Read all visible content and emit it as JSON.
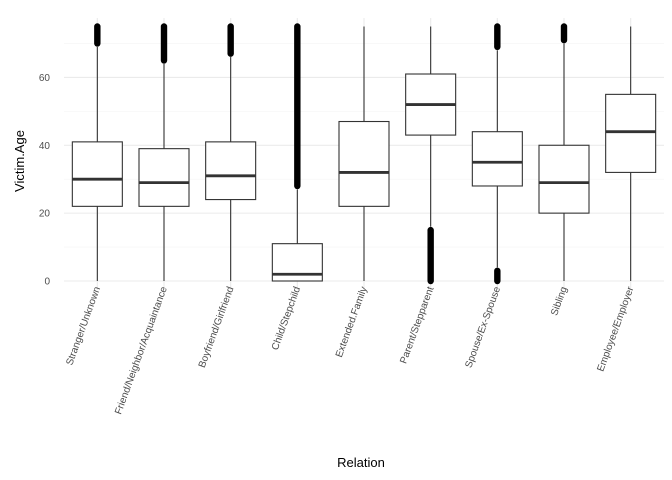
{
  "chart_data": {
    "type": "boxplot",
    "xlabel": "Relation",
    "ylabel": "Victim.Age",
    "ylim": [
      0,
      75
    ],
    "yticks": [
      0,
      20,
      40,
      60
    ],
    "grid": true,
    "legend": "none",
    "categories": [
      "Stranger/Unknown",
      "Friend/Neighbor/Acquaintance",
      "Boyfriend/Girlfriend",
      "Child/Stepchild",
      "Extended.Family",
      "Parent/Stepparent",
      "Spouse/Ex-Spouse",
      "Sibling",
      "Employee/Employer"
    ],
    "boxes": [
      {
        "whisker_low": 0,
        "q1": 22,
        "median": 30,
        "q3": 41,
        "whisker_high": 69,
        "outliers_high": [
          70,
          75
        ],
        "outliers_low": []
      },
      {
        "whisker_low": 0,
        "q1": 22,
        "median": 29,
        "q3": 39,
        "whisker_high": 64,
        "outliers_high": [
          65,
          75
        ],
        "outliers_low": []
      },
      {
        "whisker_low": 0,
        "q1": 24,
        "median": 31,
        "q3": 41,
        "whisker_high": 66,
        "outliers_high": [
          67,
          75
        ],
        "outliers_low": []
      },
      {
        "whisker_low": 0,
        "q1": 0,
        "median": 2,
        "q3": 11,
        "whisker_high": 27,
        "outliers_high": [
          28,
          75
        ],
        "outliers_low": []
      },
      {
        "whisker_low": 0,
        "q1": 22,
        "median": 32,
        "q3": 47,
        "whisker_high": 75,
        "outliers_high": [],
        "outliers_low": []
      },
      {
        "whisker_low": 16,
        "q1": 43,
        "median": 52,
        "q3": 61,
        "whisker_high": 75,
        "outliers_high": [],
        "outliers_low": [
          0,
          15
        ]
      },
      {
        "whisker_low": 4,
        "q1": 28,
        "median": 35,
        "q3": 44,
        "whisker_high": 68,
        "outliers_high": [
          69,
          75
        ],
        "outliers_low": [
          0,
          3
        ]
      },
      {
        "whisker_low": 0,
        "q1": 20,
        "median": 29,
        "q3": 40,
        "whisker_high": 70,
        "outliers_high": [
          71,
          75
        ],
        "outliers_low": []
      },
      {
        "whisker_low": 0,
        "q1": 32,
        "median": 44,
        "q3": 55,
        "whisker_high": 75,
        "outliers_high": [],
        "outliers_low": []
      }
    ],
    "colors": {
      "box_stroke": "#333333",
      "median": "#333333",
      "grid_major": "#ebebeb",
      "grid_minor": "#f5f5f5",
      "outlier": "#000000",
      "tick_text": "#4d4d4d"
    }
  }
}
